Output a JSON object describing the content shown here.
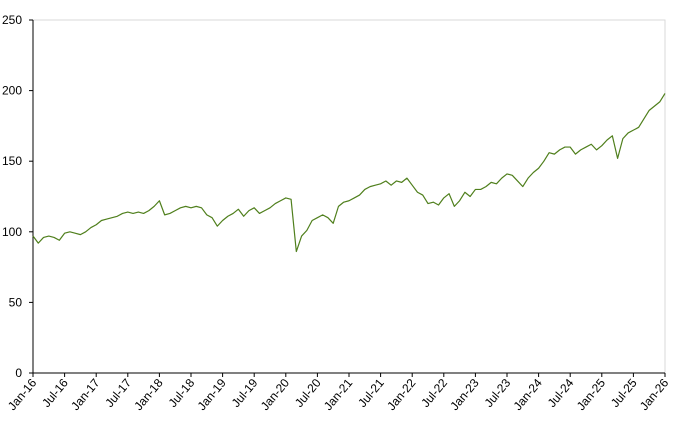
{
  "chart_data": {
    "type": "line",
    "categories": [
      "Jan-16",
      null,
      null,
      null,
      null,
      null,
      "Jul-16",
      null,
      null,
      null,
      null,
      null,
      "Jan-17",
      null,
      null,
      null,
      null,
      null,
      "Jul-17",
      null,
      null,
      null,
      null,
      null,
      "Jan-18",
      null,
      null,
      null,
      null,
      null,
      "Jul-18",
      null,
      null,
      null,
      null,
      null,
      "Jan-19",
      null,
      null,
      null,
      null,
      null,
      "Jul-19",
      null,
      null,
      null,
      null,
      null,
      "Jan-20",
      null,
      null,
      null,
      null,
      null,
      "Jul-20",
      null,
      null,
      null,
      null,
      null,
      "Jan-21",
      null,
      null,
      null,
      null,
      null,
      "Jul-21",
      null,
      null,
      null,
      null,
      null,
      "Jan-22",
      null,
      null,
      null,
      null,
      null,
      "Jul-22",
      null,
      null,
      null,
      null,
      null,
      "Jan-23",
      null,
      null,
      null,
      null,
      null,
      "Jul-23",
      null,
      null,
      null,
      null,
      null,
      "Jan-24",
      null,
      null,
      null,
      null,
      null,
      "Jul-24",
      null,
      null,
      null,
      null,
      null,
      "Jan-25",
      null,
      null,
      null,
      null,
      null,
      "Jul-25",
      null,
      null,
      null,
      null,
      null,
      "Jan-26"
    ],
    "values": [
      97,
      92,
      96,
      97,
      96,
      94,
      99,
      100,
      99,
      98,
      100,
      103,
      105,
      108,
      109,
      110,
      111,
      113,
      114,
      113,
      114,
      113,
      115,
      118,
      122,
      112,
      113,
      115,
      117,
      118,
      117,
      118,
      117,
      112,
      110,
      104,
      108,
      111,
      113,
      116,
      111,
      115,
      117,
      113,
      115,
      117,
      120,
      122,
      124,
      123,
      86,
      97,
      101,
      108,
      110,
      112,
      110,
      106,
      118,
      121,
      122,
      124,
      126,
      130,
      132,
      133,
      134,
      136,
      133,
      136,
      135,
      138,
      133,
      128,
      126,
      120,
      121,
      119,
      124,
      127,
      118,
      122,
      128,
      125,
      130,
      130,
      132,
      135,
      134,
      138,
      141,
      140,
      136,
      132,
      138,
      142,
      145,
      150,
      156,
      155,
      158,
      160,
      160,
      155,
      158,
      160,
      162,
      158,
      161,
      165,
      168,
      152,
      166,
      170,
      172,
      174,
      180,
      186,
      189,
      192,
      198
    ],
    "color": "#4f7f1c",
    "ylim": [
      0,
      250
    ],
    "yticks": [
      0,
      50,
      100,
      150,
      200,
      250
    ],
    "grid": false
  }
}
